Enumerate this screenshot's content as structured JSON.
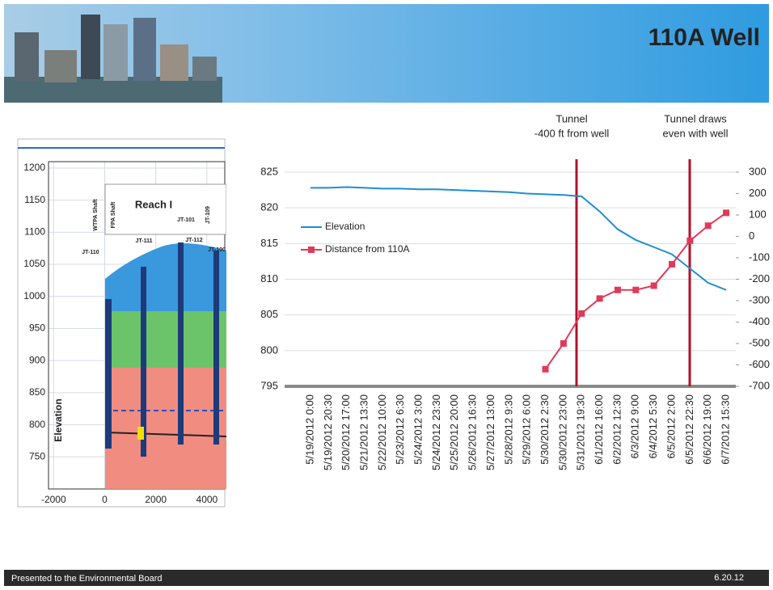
{
  "title": "110A Well",
  "footer": "Presented to the Environmental Board",
  "date": "6.20.12",
  "cross_section": {
    "ylabel": "Elevation",
    "xlim": [
      -2200,
      4700
    ],
    "ylim": [
      700,
      1210
    ],
    "xticks": [
      -2000,
      0,
      2000,
      4000
    ],
    "yticks": [
      750,
      800,
      850,
      900,
      950,
      1000,
      1050,
      1100,
      1150,
      1200
    ],
    "labels": [
      "Reach I",
      "WTPA Shaft",
      "FPA Shaft",
      "JT-109",
      "JT-110",
      "JT-111",
      "JT-101",
      "JT-112",
      "JT-100"
    ]
  },
  "chart_data": {
    "type": "line",
    "annotations": [
      [
        "Tunnel",
        "-400 ft from well"
      ],
      [
        "Tunnel draws",
        "even with well"
      ]
    ],
    "categories": [
      "5/19/2012 0:00",
      "5/19/2012 20:30",
      "5/20/2012 17:00",
      "5/21/2012 13:30",
      "5/22/2012 10:00",
      "5/23/2012 6:30",
      "5/24/2012 3:00",
      "5/24/2012 23:30",
      "5/25/2012 20:00",
      "5/26/2012 16:30",
      "5/27/2012 13:00",
      "5/28/2012 9:30",
      "5/29/2012 6:00",
      "5/30/2012 2:30",
      "5/30/2012 23:00",
      "5/31/2012 19:30",
      "6/1/2012 16:00",
      "6/2/2012 12:30",
      "6/3/2012 9:00",
      "6/4/2012 5:30",
      "6/5/2012 2:00",
      "6/5/2012 22:30",
      "6/6/2012 19:00",
      "6/7/2012 15:30"
    ],
    "series": [
      {
        "name": "Elevation",
        "color": "#1f8ed0",
        "values": [
          822.8,
          822.8,
          822.9,
          822.8,
          822.7,
          822.7,
          822.6,
          822.6,
          822.5,
          822.4,
          822.3,
          822.2,
          822.0,
          821.9,
          821.8,
          821.6,
          819.5,
          817.0,
          815.5,
          814.5,
          813.5,
          811.5,
          809.5,
          808.5
        ]
      },
      {
        "name": "Distance from 110A",
        "color": "#e03a5a",
        "axis": "y2",
        "values": [
          null,
          null,
          null,
          null,
          null,
          null,
          null,
          null,
          null,
          null,
          null,
          null,
          null,
          -620,
          -500,
          -360,
          -290,
          -250,
          -250,
          -230,
          -130,
          -20,
          50,
          110
        ]
      }
    ],
    "ylim": [
      795,
      825
    ],
    "yticks": [
      795,
      800,
      805,
      810,
      815,
      820,
      825
    ],
    "y2lim": [
      -700,
      300
    ],
    "y2ticks": [
      -700,
      -600,
      -500,
      -400,
      -300,
      -200,
      -100,
      0,
      100,
      200,
      300
    ],
    "grid": true,
    "legend": "left"
  }
}
